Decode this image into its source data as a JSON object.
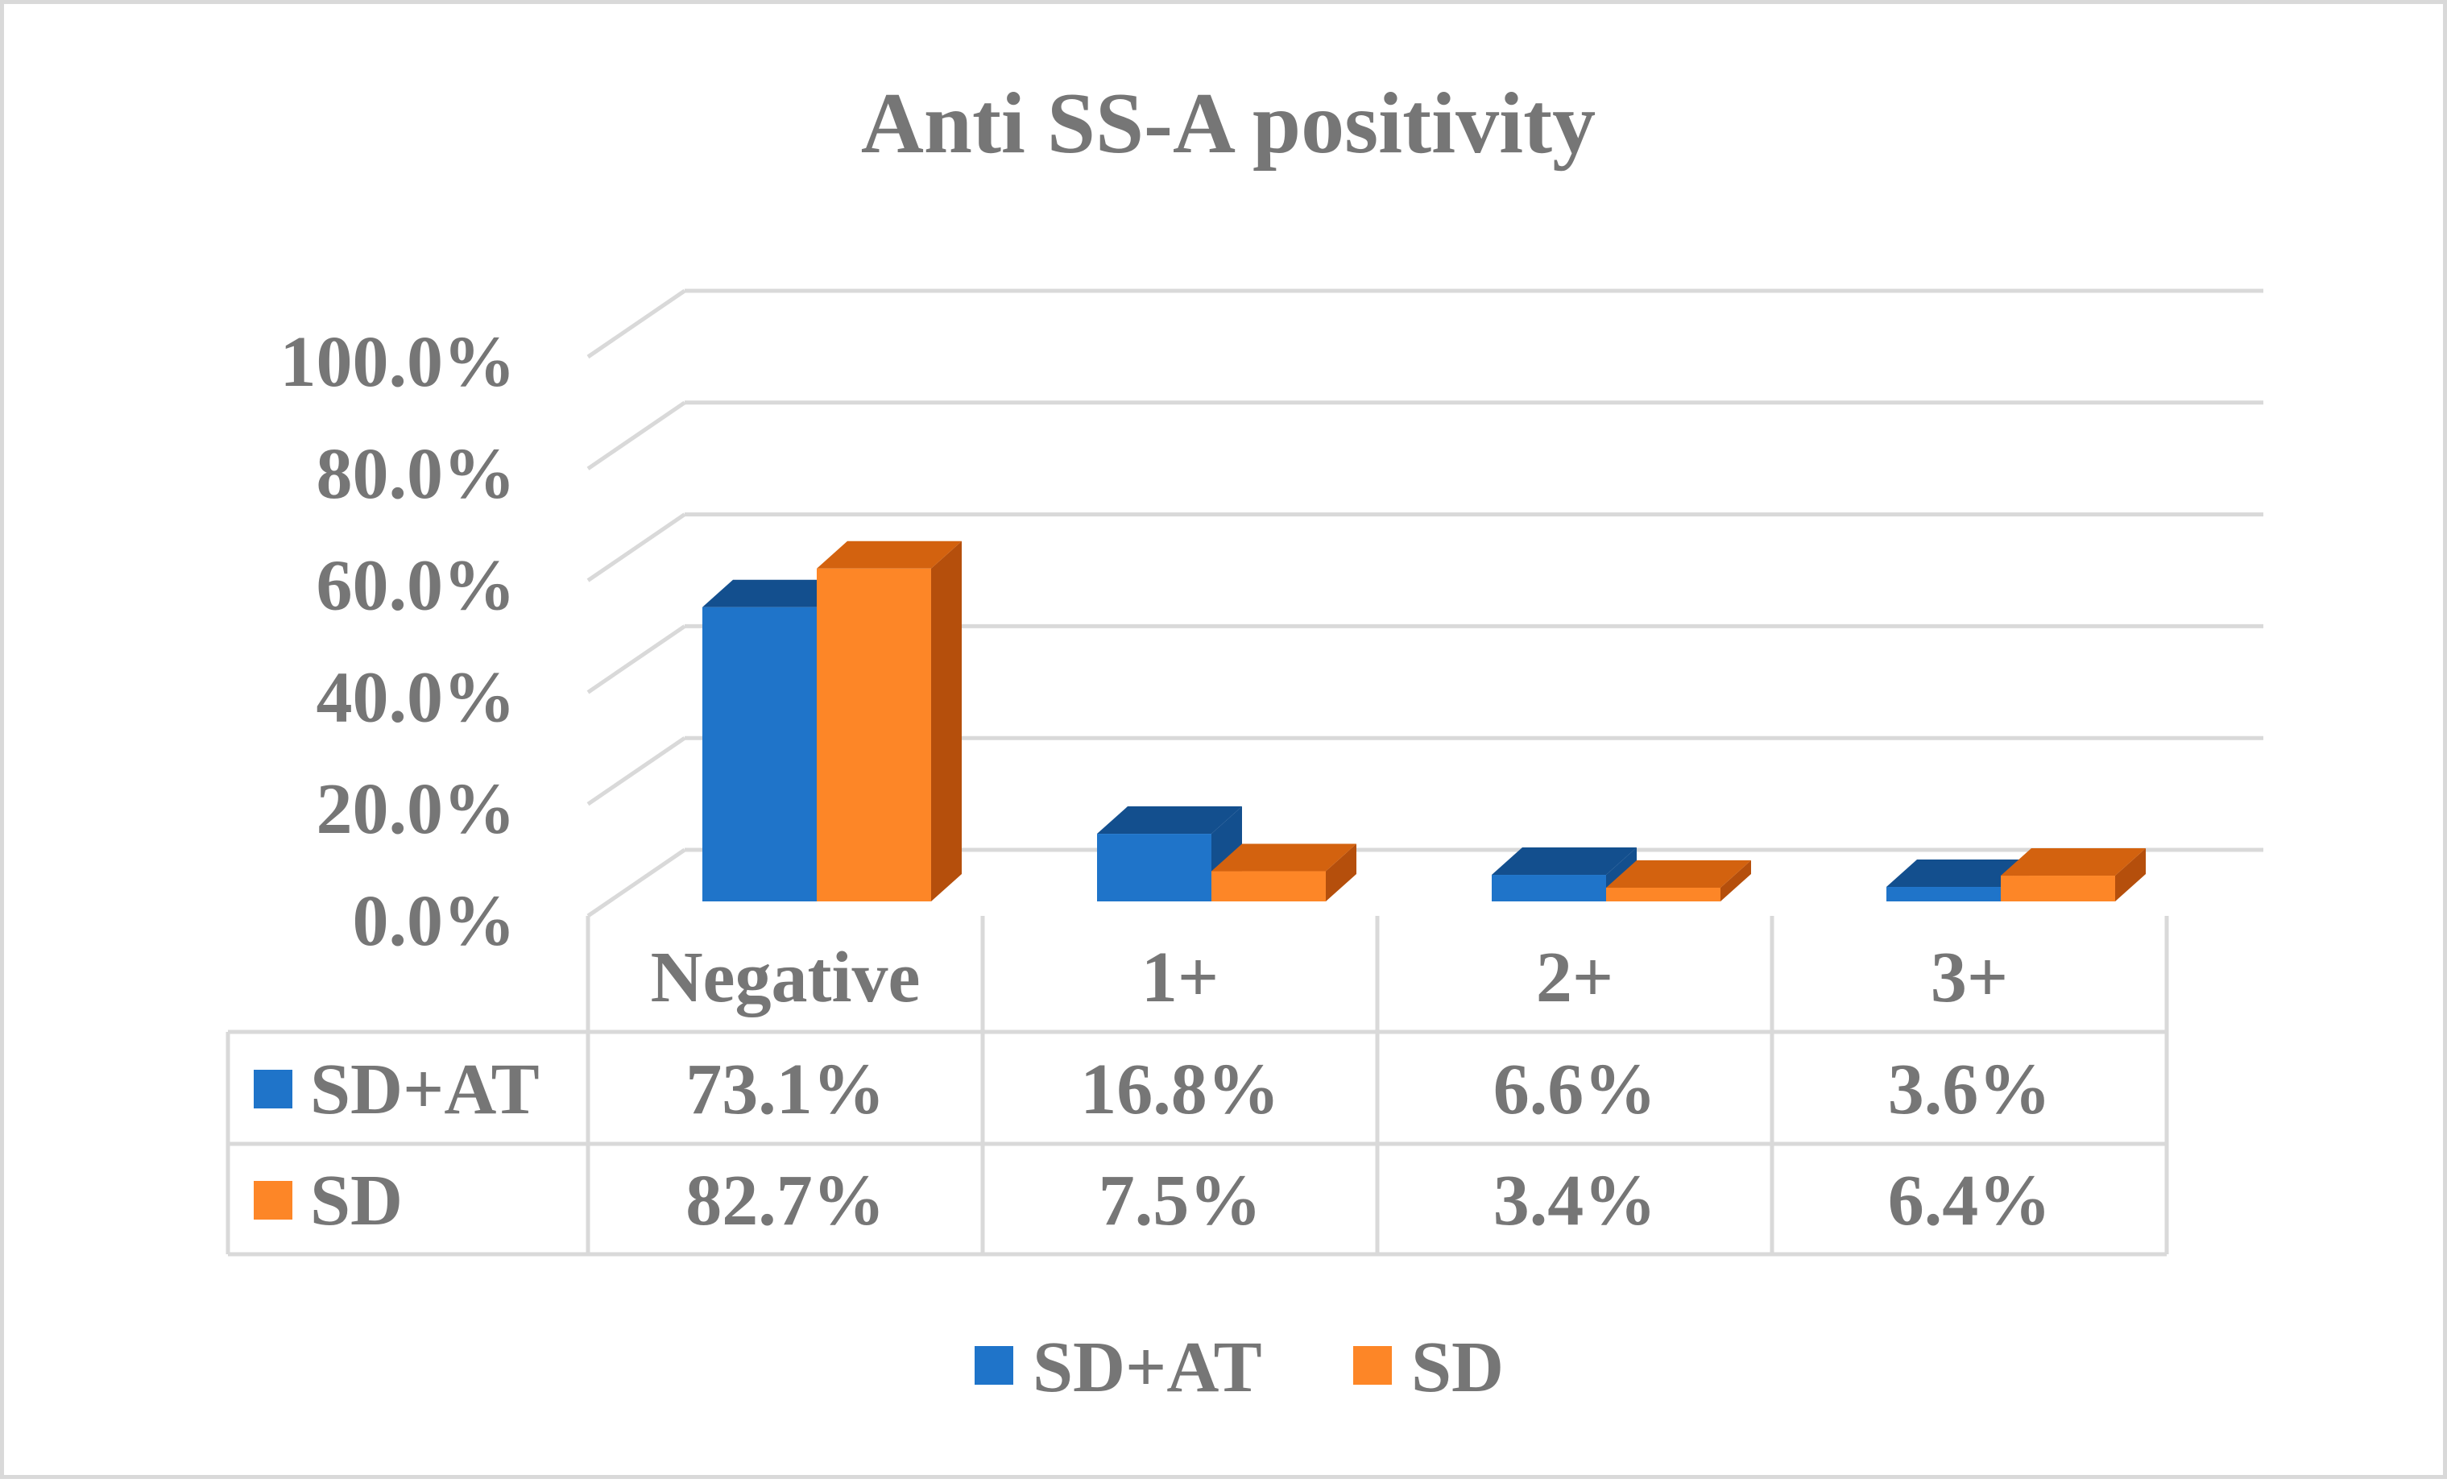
{
  "chart_data": {
    "type": "bar",
    "title": "Anti SS-A positivity",
    "categories": [
      "Negative",
      "1+",
      "2+",
      "3+"
    ],
    "series": [
      {
        "name": "SD+AT",
        "values": [
          73.1,
          16.8,
          6.6,
          3.6
        ],
        "labels": [
          "73.1%",
          "16.8%",
          "6.6%",
          "3.6%"
        ],
        "color": "#1f74c9",
        "top_color": "#134f8e",
        "side_color": "#134f8e"
      },
      {
        "name": "SD",
        "values": [
          82.7,
          7.5,
          3.4,
          6.4
        ],
        "labels": [
          "82.7%",
          "7.5%",
          "3.4%",
          "6.4%"
        ],
        "color": "#fd8627",
        "top_color": "#d3620f",
        "side_color": "#b54f0c"
      }
    ],
    "y_ticks": [
      "0.0%",
      "20.0%",
      "40.0%",
      "60.0%",
      "80.0%",
      "100.0%"
    ],
    "ylim": [
      0,
      100
    ],
    "grid": true,
    "three_d": true,
    "data_table": true,
    "legend_position": "bottom",
    "xlabel": "",
    "ylabel": ""
  }
}
